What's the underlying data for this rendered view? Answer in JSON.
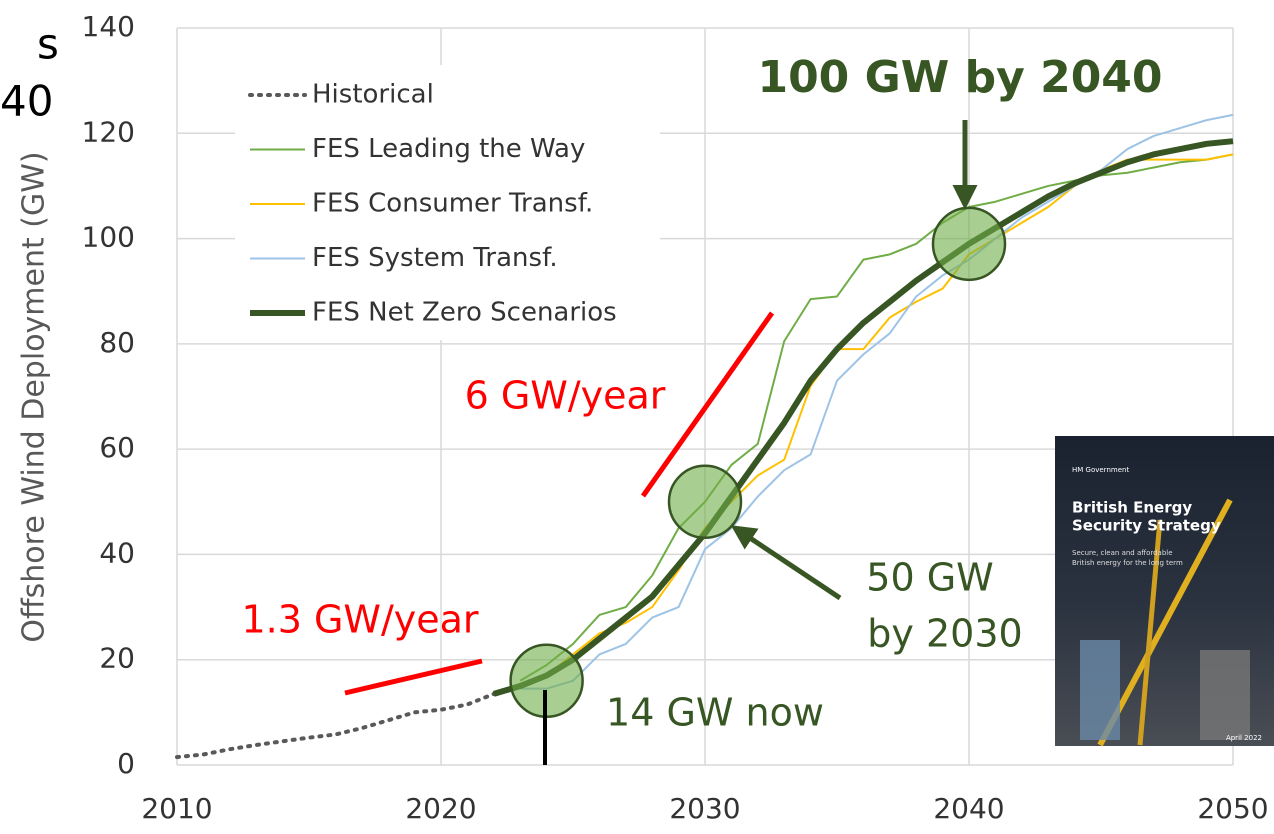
{
  "chart_data": {
    "type": "line",
    "fragments": [
      "s",
      "40"
    ],
    "y_label": "Offshore Wind Deployment (GW)",
    "x": [
      2010,
      2011,
      2012,
      2013,
      2014,
      2015,
      2016,
      2017,
      2018,
      2019,
      2020,
      2021,
      2022,
      2023,
      2024,
      2025,
      2026,
      2027,
      2028,
      2029,
      2030,
      2031,
      2032,
      2033,
      2034,
      2035,
      2036,
      2037,
      2038,
      2039,
      2040,
      2041,
      2042,
      2043,
      2044,
      2045,
      2046,
      2047,
      2048,
      2049,
      2050
    ],
    "xlim": [
      2010,
      2050
    ],
    "xticks": [
      2010,
      2020,
      2030,
      2040,
      2050
    ],
    "ylim": [
      0,
      140
    ],
    "yticks": [
      0,
      20,
      40,
      60,
      80,
      100,
      120,
      140
    ],
    "grid": true,
    "legend": "upper-left",
    "series": [
      {
        "name": "Historical",
        "color": "#595959",
        "dashed": true,
        "line_width": 4,
        "values": [
          1.5,
          2,
          3,
          3.8,
          4.5,
          5.2,
          5.8,
          7,
          8.5,
          10,
          10.5,
          11.5,
          13.5,
          null,
          null,
          null,
          null,
          null,
          null,
          null,
          null,
          null,
          null,
          null,
          null,
          null,
          null,
          null,
          null,
          null,
          null,
          null,
          null,
          null,
          null,
          null,
          null,
          null,
          null,
          null,
          null
        ]
      },
      {
        "name": "FES Leading the Way",
        "color": "#70ad47",
        "dashed": false,
        "line_width": 2,
        "values": [
          null,
          null,
          null,
          null,
          null,
          null,
          null,
          null,
          null,
          null,
          null,
          null,
          null,
          16,
          19,
          23,
          28.5,
          30,
          36,
          45,
          50,
          57,
          61,
          80.5,
          88.5,
          89,
          96,
          97,
          99,
          103,
          106,
          107,
          108.5,
          110,
          111,
          112,
          112.5,
          113.5,
          114.5,
          115,
          116
        ]
      },
      {
        "name": "FES Consumer Transf.",
        "color": "#ffc000",
        "dashed": false,
        "line_width": 2,
        "values": [
          null,
          null,
          null,
          null,
          null,
          null,
          null,
          null,
          null,
          null,
          null,
          null,
          null,
          15,
          17,
          21,
          25,
          27,
          30,
          37,
          45,
          50,
          55,
          58,
          72,
          79,
          79,
          85,
          88,
          90.5,
          97,
          100,
          103,
          106,
          110,
          113,
          115,
          115,
          115,
          115,
          116
        ]
      },
      {
        "name": "FES System Transf.",
        "color": "#9dc3e6",
        "dashed": false,
        "line_width": 2,
        "values": [
          null,
          null,
          null,
          null,
          null,
          null,
          null,
          null,
          null,
          null,
          null,
          null,
          null,
          14.5,
          14.5,
          16,
          21,
          23,
          28,
          30,
          41,
          45,
          51,
          56,
          59,
          73,
          78,
          82,
          89,
          93,
          96,
          100,
          104,
          107,
          110,
          113,
          117,
          119.5,
          121,
          122.5,
          123.5
        ]
      },
      {
        "name": "FES Net Zero Scenarios",
        "color": "#375623",
        "dashed": false,
        "line_width": 6,
        "values": [
          null,
          null,
          null,
          null,
          null,
          null,
          null,
          null,
          null,
          null,
          null,
          null,
          13.5,
          15,
          17,
          20,
          24,
          28,
          32,
          38,
          44,
          51,
          58,
          65,
          73,
          79,
          84,
          88,
          92,
          95.5,
          99,
          102,
          105,
          108,
          110.5,
          112.5,
          114.5,
          116,
          117,
          118,
          118.5
        ]
      }
    ],
    "highlights": [
      {
        "x": 2024,
        "y": 16
      },
      {
        "x": 2030,
        "y": 50
      },
      {
        "x": 2040,
        "y": 99
      }
    ],
    "annotations": [
      "100 GW by 2040",
      "6 GW/year",
      "1.3 GW/year",
      "50 GW",
      "by 2030",
      "14 GW now"
    ],
    "inset": {
      "org": "HM Government",
      "title": [
        "British Energy",
        "Security Strategy"
      ],
      "subtitle": [
        "Secure, clean and affordable",
        "British energy for the long term"
      ],
      "date": "April 2022"
    }
  }
}
